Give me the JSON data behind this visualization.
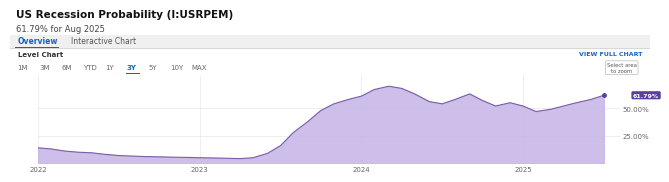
{
  "title": "US Recession Probability (I:USRPEM)",
  "subtitle": "61.79% for Aug 2025",
  "tab_overview": "Overview",
  "tab_interactive": "Interactive Chart",
  "level_chart_label": "Level Chart",
  "view_full_chart": "VIEW FULL CHART",
  "select_area_label": "Select area\nto zoom",
  "current_value_label": "61.79%",
  "y_ticks": [
    "25.00%",
    "50.00%"
  ],
  "x_ticks": [
    "2022",
    "2023",
    "2024",
    "2025"
  ],
  "time_buttons": [
    "1M",
    "3M",
    "6M",
    "YTD",
    "1Y",
    "3Y",
    "5Y",
    "10Y",
    "MAX"
  ],
  "active_button": "3Y",
  "background_color": "#ffffff",
  "chart_bg": "#ffffff",
  "fill_color": "#c9b8e8",
  "line_color": "#7b5ea7",
  "current_dot_color": "#5b3fa0",
  "grid_color": "#e8e8e8",
  "separator_color": "#d0d0d0",
  "data_x": [
    0,
    0.08,
    0.17,
    0.25,
    0.33,
    0.42,
    0.5,
    0.58,
    0.67,
    0.75,
    0.83,
    0.92,
    1.0,
    1.08,
    1.17,
    1.25,
    1.33,
    1.42,
    1.5,
    1.58,
    1.67,
    1.75,
    1.83,
    1.92,
    2.0,
    2.08,
    2.17,
    2.25,
    2.33,
    2.42,
    2.5,
    2.58,
    2.67,
    2.75,
    2.83,
    2.92,
    3.0,
    3.08,
    3.17,
    3.25,
    3.33,
    3.42,
    3.5
  ],
  "data_y": [
    14,
    13,
    11,
    10,
    9.5,
    8,
    7,
    6.5,
    6,
    5.8,
    5.5,
    5.3,
    5.0,
    4.8,
    4.5,
    4.2,
    5,
    9,
    16,
    28,
    38,
    48,
    54,
    58,
    61,
    67,
    70,
    68,
    63,
    56,
    54,
    58,
    63,
    57,
    52,
    55,
    52,
    47,
    49,
    52,
    55,
    58,
    61.79
  ],
  "ylim": [
    0,
    80
  ],
  "xlim": [
    0,
    3.6
  ]
}
